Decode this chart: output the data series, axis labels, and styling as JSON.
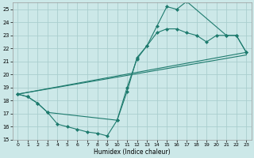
{
  "xlabel": "Humidex (Indice chaleur)",
  "bg_color": "#cce8e8",
  "grid_color": "#aacece",
  "line_color": "#1e7b6e",
  "xlim": [
    -0.5,
    23.5
  ],
  "ylim": [
    15,
    25.5
  ],
  "xticks": [
    0,
    1,
    2,
    3,
    4,
    5,
    6,
    7,
    8,
    9,
    10,
    11,
    12,
    13,
    14,
    15,
    16,
    17,
    18,
    19,
    20,
    21,
    22,
    23
  ],
  "yticks": [
    15,
    16,
    17,
    18,
    19,
    20,
    21,
    22,
    23,
    24,
    25
  ],
  "series": [
    {
      "x": [
        0,
        1,
        2,
        3,
        4,
        5,
        6,
        7,
        8,
        9,
        10,
        11,
        12,
        13,
        14,
        15,
        16,
        17,
        21,
        22,
        23
      ],
      "y": [
        18.5,
        18.3,
        17.8,
        17.1,
        16.2,
        16.0,
        15.8,
        15.6,
        15.5,
        15.3,
        16.5,
        18.7,
        21.3,
        22.2,
        23.7,
        25.2,
        25.0,
        25.6,
        23.0,
        23.0,
        21.7
      ],
      "has_markers": true
    },
    {
      "x": [
        0,
        1,
        2,
        3,
        10,
        11,
        12,
        13,
        14,
        15,
        16,
        17,
        18,
        19,
        20,
        21,
        22,
        23
      ],
      "y": [
        18.5,
        18.3,
        17.8,
        17.1,
        16.5,
        19.0,
        21.2,
        22.2,
        23.2,
        23.5,
        23.5,
        23.2,
        23.0,
        22.5,
        23.0,
        23.0,
        23.0,
        21.7
      ],
      "has_markers": true
    },
    {
      "x": [
        0,
        23
      ],
      "y": [
        18.5,
        21.7
      ],
      "has_markers": false
    },
    {
      "x": [
        0,
        23
      ],
      "y": [
        18.5,
        21.5
      ],
      "has_markers": false
    }
  ]
}
